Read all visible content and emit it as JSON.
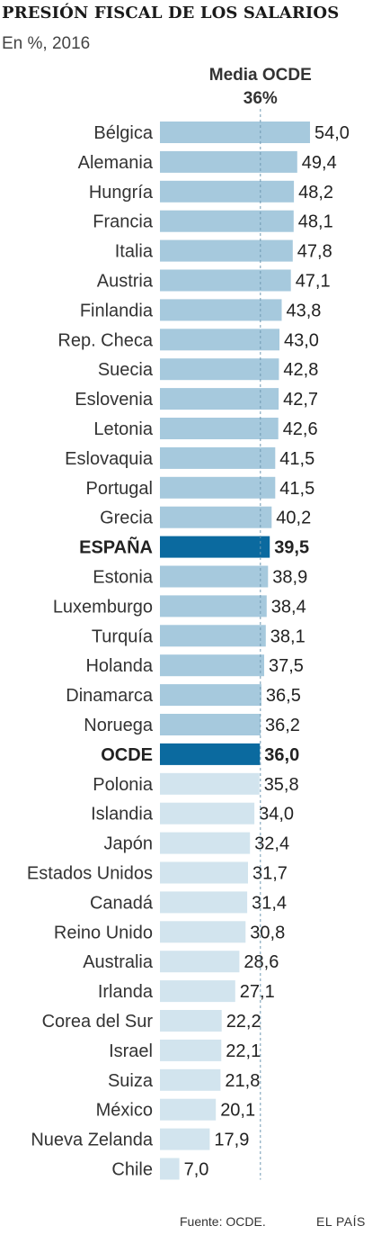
{
  "colors": {
    "above_average": "#a6c9dd",
    "below_average": "#d2e4ee",
    "highlight": "#0b6a9f",
    "reference_line": "#6f99b2",
    "label_text": "#333333",
    "value_text": "#222222"
  },
  "chart_data": {
    "type": "bar",
    "orientation": "horizontal",
    "title": "PRESIÓN FISCAL DE LOS SALARIOS",
    "subtitle": "En %, 2016",
    "reference_line": {
      "label_line1": "Media OCDE",
      "label_line2": "36%",
      "value": 36
    },
    "categories": [
      "Bélgica",
      "Alemania",
      "Hungría",
      "Francia",
      "Italia",
      "Austria",
      "Finlandia",
      "Rep. Checa",
      "Suecia",
      "Eslovenia",
      "Letonia",
      "Eslovaquia",
      "Portugal",
      "Grecia",
      "ESPAÑA",
      "Estonia",
      "Luxemburgo",
      "Turquía",
      "Holanda",
      "Dinamarca",
      "Noruega",
      "OCDE",
      "Polonia",
      "Islandia",
      "Japón",
      "Estados Unidos",
      "Canadá",
      "Reino Unido",
      "Australia",
      "Irlanda",
      "Corea del Sur",
      "Israel",
      "Suiza",
      "México",
      "Nueva Zelanda",
      "Chile"
    ],
    "values": [
      54.0,
      49.4,
      48.2,
      48.1,
      47.8,
      47.1,
      43.8,
      43.0,
      42.8,
      42.7,
      42.6,
      41.5,
      41.5,
      40.2,
      39.5,
      38.9,
      38.4,
      38.1,
      37.5,
      36.5,
      36.2,
      36.0,
      35.8,
      34.0,
      32.4,
      31.7,
      31.4,
      30.8,
      28.6,
      27.1,
      22.2,
      22.1,
      21.8,
      20.1,
      17.9,
      7.0
    ],
    "value_labels": [
      "54,0",
      "49,4",
      "48,2",
      "48,1",
      "47,8",
      "47,1",
      "43,8",
      "43,0",
      "42,8",
      "42,7",
      "42,6",
      "41,5",
      "41,5",
      "40,2",
      "39,5",
      "38,9",
      "38,4",
      "38,1",
      "37,5",
      "36,5",
      "36,2",
      "36,0",
      "35,8",
      "34,0",
      "32,4",
      "31,7",
      "31,4",
      "30,8",
      "28,6",
      "27,1",
      "22,2",
      "22,1",
      "21,8",
      "20,1",
      "17,9",
      "7,0"
    ],
    "highlighted": [
      "ESPAÑA",
      "OCDE"
    ],
    "xlim": [
      0,
      54
    ],
    "xlabel": "",
    "ylabel": "",
    "grid": false,
    "legend": "none"
  },
  "footer": {
    "source": "Fuente: OCDE.",
    "brand": "EL PAÍS"
  }
}
